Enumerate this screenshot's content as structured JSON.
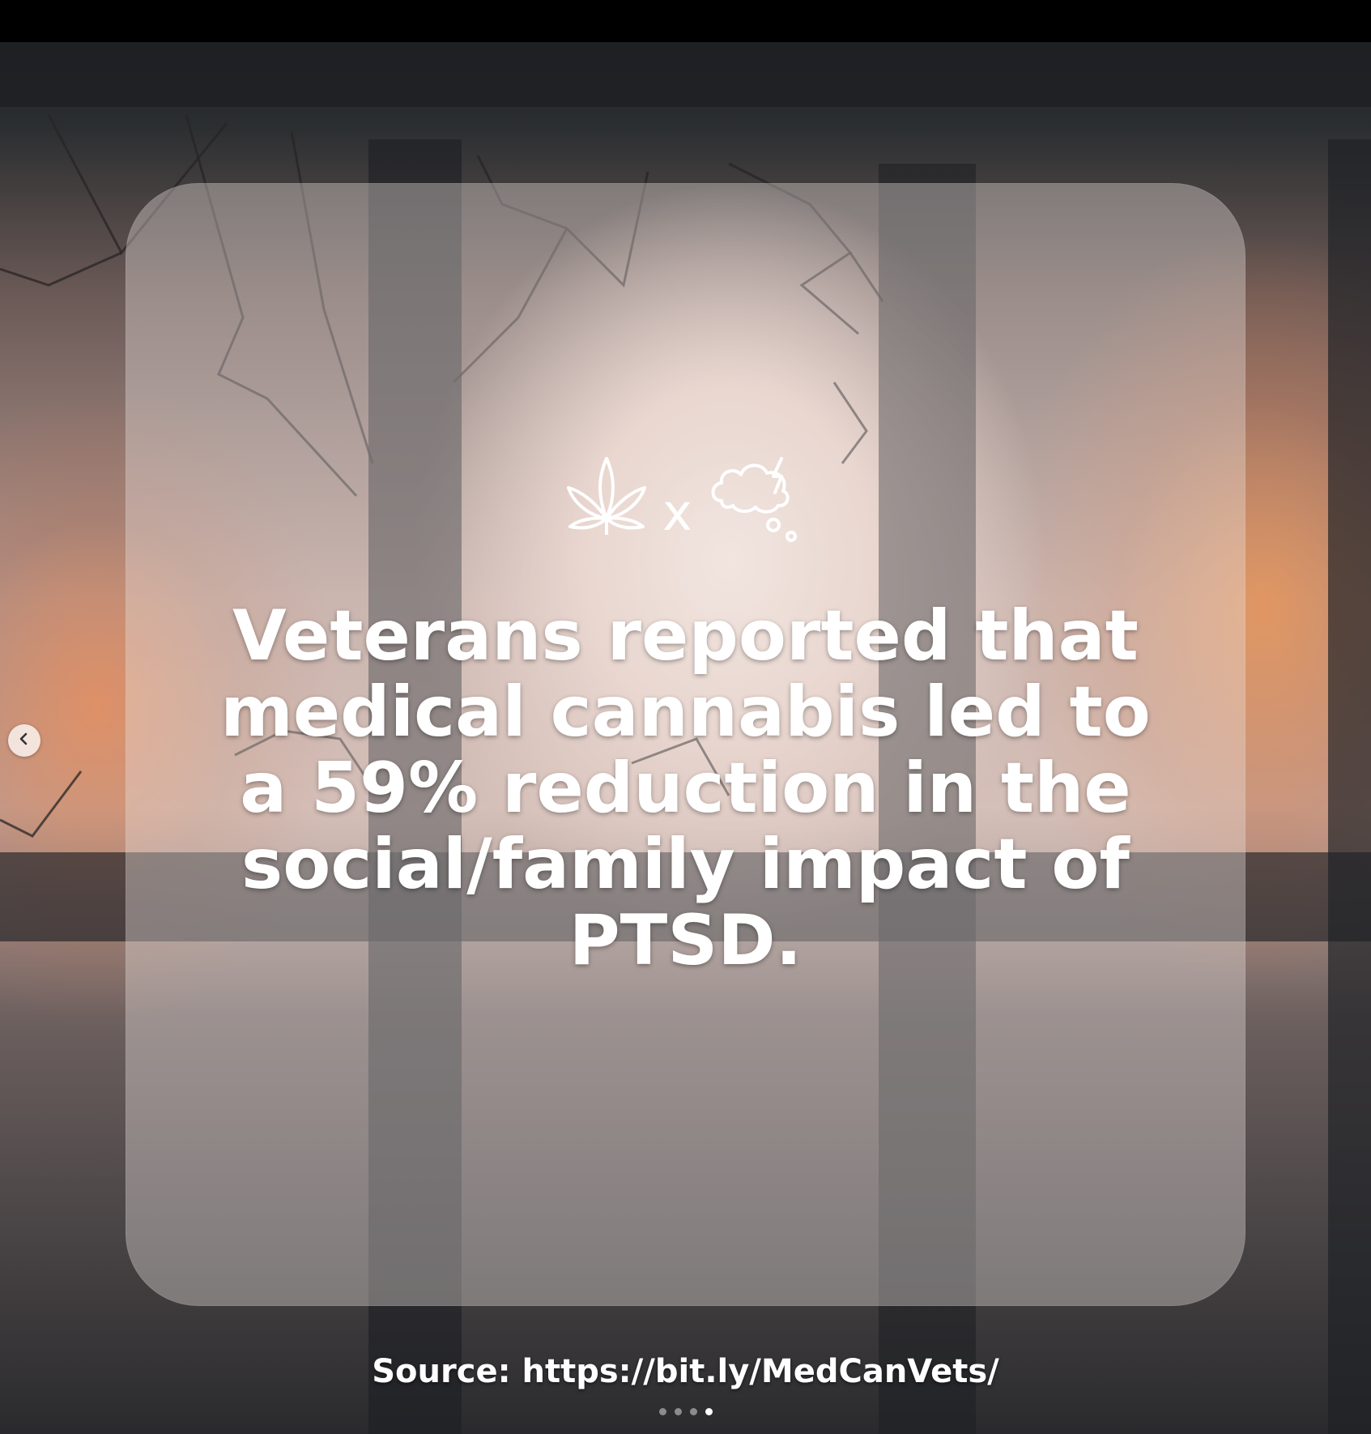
{
  "post": {
    "headline": "Veterans reported that medical cannabis led to a 59% reduction in the social/family impact of PTSD.",
    "icon_separator": "x",
    "icons": [
      "cannabis-leaf-icon",
      "storm-thought-cloud-icon"
    ],
    "source": "Source: https://bit.ly/MedCanVets/"
  },
  "carousel": {
    "total_slides": 4,
    "active_slide": 4,
    "prev_icon": "chevron-left-icon"
  },
  "colors": {
    "card": "#ebe0e0",
    "text": "#ffffff",
    "frame": "#1e2024"
  }
}
